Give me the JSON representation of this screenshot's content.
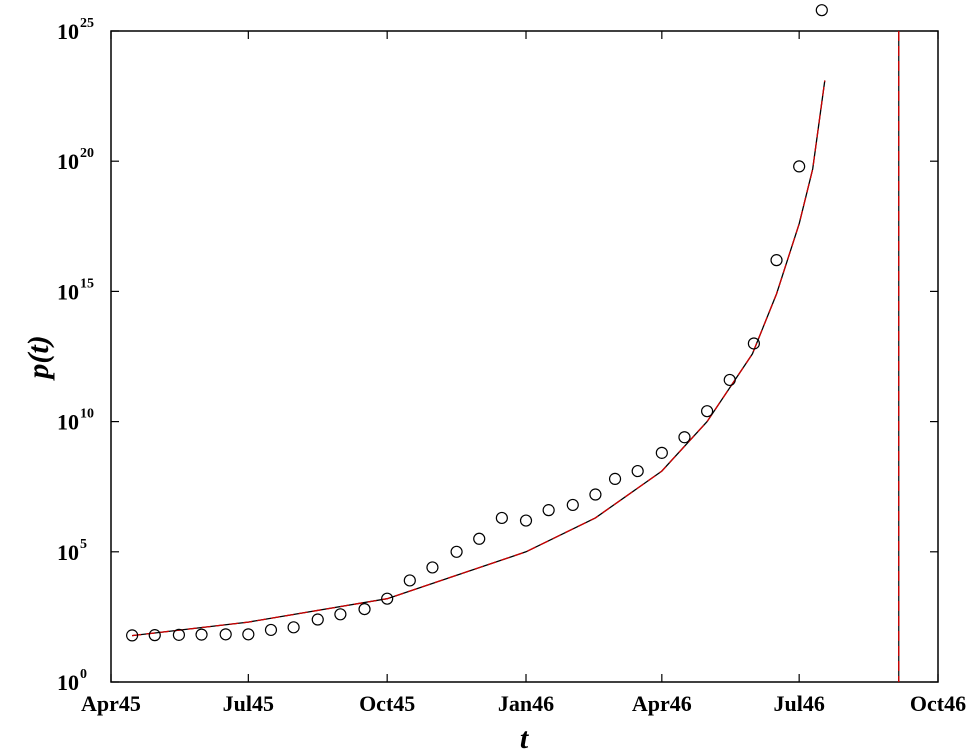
{
  "chart_data": {
    "type": "scatter",
    "title": "",
    "xlabel": "t",
    "ylabel": "p(t)",
    "y_scale": "log",
    "xlim": [
      "1945-04-01",
      "1946-10-01"
    ],
    "ylim_exponent": [
      0,
      25
    ],
    "x_ticks": [
      {
        "date": "1945-04-01",
        "label": "Apr45"
      },
      {
        "date": "1945-07-01",
        "label": "Jul45"
      },
      {
        "date": "1945-10-01",
        "label": "Oct45"
      },
      {
        "date": "1946-01-01",
        "label": "Jan46"
      },
      {
        "date": "1946-04-01",
        "label": "Apr46"
      },
      {
        "date": "1946-07-01",
        "label": "Jul46"
      },
      {
        "date": "1946-10-01",
        "label": "Oct46"
      }
    ],
    "y_ticks": [
      {
        "exponent": 0,
        "base": "10",
        "exp": "0"
      },
      {
        "exponent": 5,
        "base": "10",
        "exp": "5"
      },
      {
        "exponent": 10,
        "base": "10",
        "exp": "10"
      },
      {
        "exponent": 15,
        "base": "10",
        "exp": "15"
      },
      {
        "exponent": 20,
        "base": "10",
        "exp": "20"
      },
      {
        "exponent": 25,
        "base": "10",
        "exp": "25"
      }
    ],
    "grid": false,
    "legend": "none",
    "singularity_date": "1946-09-05",
    "series": [
      {
        "kind": "markers",
        "marker": "open-circle",
        "color": "#000000",
        "points": [
          {
            "date": "1945-04-15",
            "log10_p": 1.79
          },
          {
            "date": "1945-04-30",
            "log10_p": 1.8
          },
          {
            "date": "1945-05-16",
            "log10_p": 1.81
          },
          {
            "date": "1945-05-31",
            "log10_p": 1.82
          },
          {
            "date": "1945-06-16",
            "log10_p": 1.83
          },
          {
            "date": "1945-07-01",
            "log10_p": 1.83
          },
          {
            "date": "1945-07-16",
            "log10_p": 2.0
          },
          {
            "date": "1945-07-31",
            "log10_p": 2.1
          },
          {
            "date": "1945-08-16",
            "log10_p": 2.4
          },
          {
            "date": "1945-08-31",
            "log10_p": 2.6
          },
          {
            "date": "1945-09-16",
            "log10_p": 2.8
          },
          {
            "date": "1945-10-01",
            "log10_p": 3.2
          },
          {
            "date": "1945-10-16",
            "log10_p": 3.9
          },
          {
            "date": "1945-10-31",
            "log10_p": 4.4
          },
          {
            "date": "1945-11-16",
            "log10_p": 5.0
          },
          {
            "date": "1945-12-01",
            "log10_p": 5.5
          },
          {
            "date": "1945-12-16",
            "log10_p": 6.3
          },
          {
            "date": "1946-01-01",
            "log10_p": 6.2
          },
          {
            "date": "1946-01-16",
            "log10_p": 6.6
          },
          {
            "date": "1946-02-01",
            "log10_p": 6.8
          },
          {
            "date": "1946-02-16",
            "log10_p": 7.2
          },
          {
            "date": "1946-03-01",
            "log10_p": 7.8
          },
          {
            "date": "1946-03-16",
            "log10_p": 8.1
          },
          {
            "date": "1946-04-01",
            "log10_p": 8.8
          },
          {
            "date": "1946-04-16",
            "log10_p": 9.4
          },
          {
            "date": "1946-05-01",
            "log10_p": 10.4
          },
          {
            "date": "1946-05-16",
            "log10_p": 11.6
          },
          {
            "date": "1946-06-01",
            "log10_p": 13.0
          },
          {
            "date": "1946-06-16",
            "log10_p": 16.2
          },
          {
            "date": "1946-07-01",
            "log10_p": 19.8
          },
          {
            "date": "1946-07-16",
            "log10_p": 25.8
          }
        ]
      },
      {
        "kind": "line",
        "color": "#000000",
        "style": "solid",
        "fit": "power-law singularity",
        "points": [
          {
            "date": "1945-04-15",
            "log10_p": 1.78
          },
          {
            "date": "1945-07-01",
            "log10_p": 2.3
          },
          {
            "date": "1945-10-01",
            "log10_p": 3.2
          },
          {
            "date": "1946-01-01",
            "log10_p": 5.0
          },
          {
            "date": "1946-02-16",
            "log10_p": 6.3
          },
          {
            "date": "1946-04-01",
            "log10_p": 8.1
          },
          {
            "date": "1946-05-01",
            "log10_p": 10.0
          },
          {
            "date": "1946-05-31",
            "log10_p": 12.6
          },
          {
            "date": "1946-06-16",
            "log10_p": 14.9
          },
          {
            "date": "1946-07-01",
            "log10_p": 17.6
          },
          {
            "date": "1946-07-10",
            "log10_p": 19.7
          },
          {
            "date": "1946-07-18",
            "log10_p": 23.1
          }
        ]
      },
      {
        "kind": "line",
        "color": "#cc0000",
        "style": "dashed",
        "fit": "power-law singularity",
        "points": [
          {
            "date": "1945-04-15",
            "log10_p": 1.78
          },
          {
            "date": "1945-07-01",
            "log10_p": 2.3
          },
          {
            "date": "1945-10-01",
            "log10_p": 3.2
          },
          {
            "date": "1946-01-01",
            "log10_p": 5.0
          },
          {
            "date": "1946-02-16",
            "log10_p": 6.3
          },
          {
            "date": "1946-04-01",
            "log10_p": 8.1
          },
          {
            "date": "1946-05-01",
            "log10_p": 10.0
          },
          {
            "date": "1946-05-31",
            "log10_p": 12.6
          },
          {
            "date": "1946-06-16",
            "log10_p": 14.9
          },
          {
            "date": "1946-07-01",
            "log10_p": 17.6
          },
          {
            "date": "1946-07-10",
            "log10_p": 19.7
          },
          {
            "date": "1946-07-18",
            "log10_p": 23.1
          }
        ]
      }
    ]
  }
}
